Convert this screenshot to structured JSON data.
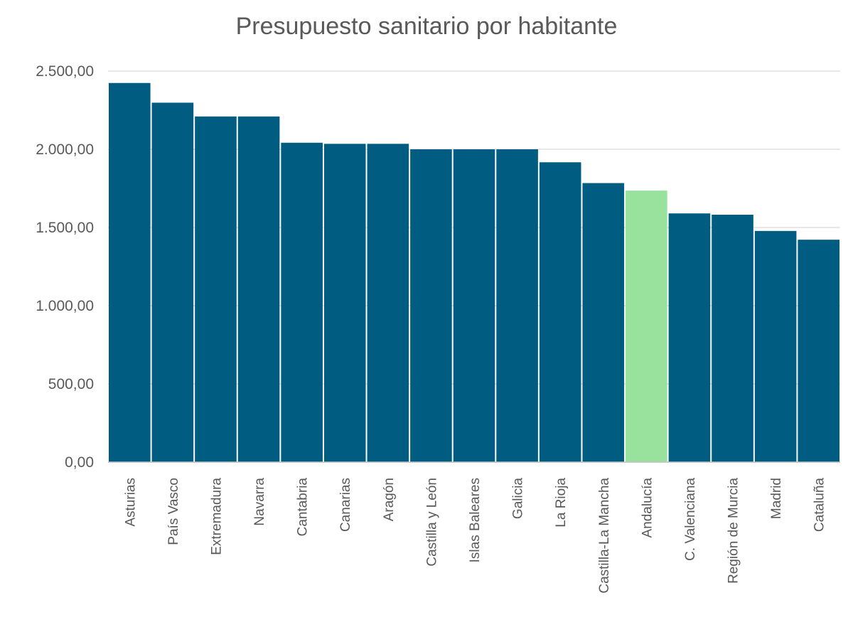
{
  "chart_data": {
    "type": "bar",
    "title": "Presupuesto sanitario por habitante",
    "xlabel": "",
    "ylabel": "",
    "ylim": [
      0,
      2500
    ],
    "yticks": [
      0,
      500,
      1000,
      1500,
      2000,
      2500
    ],
    "ytick_labels": [
      "0,00",
      "500,00",
      "1.000,00",
      "1.500,00",
      "2.000,00",
      "2.500,00"
    ],
    "grid": true,
    "categories": [
      "Asturias",
      "País Vasco",
      "Extremadura",
      "Navarra",
      "Cantabria",
      "Canarias",
      "Aragón",
      "Castilla y León",
      "Islas Baleares",
      "Galicia",
      "La Rioja",
      "Castilla-La Mancha",
      "Andalucía",
      "C. Valenciana",
      "Región de Murcia",
      "Madrid",
      "Cataluña"
    ],
    "values": [
      2424,
      2298,
      2210,
      2210,
      2042,
      2035,
      2035,
      2000,
      2000,
      2000,
      1917,
      1784,
      1736,
      1590,
      1582,
      1478,
      1422
    ],
    "colors": {
      "default": "#005c81",
      "highlight": "#98e29e",
      "highlighted_category": "Andalucía",
      "grid": "#d9d9d9",
      "axis": "#bfbfbf"
    }
  }
}
